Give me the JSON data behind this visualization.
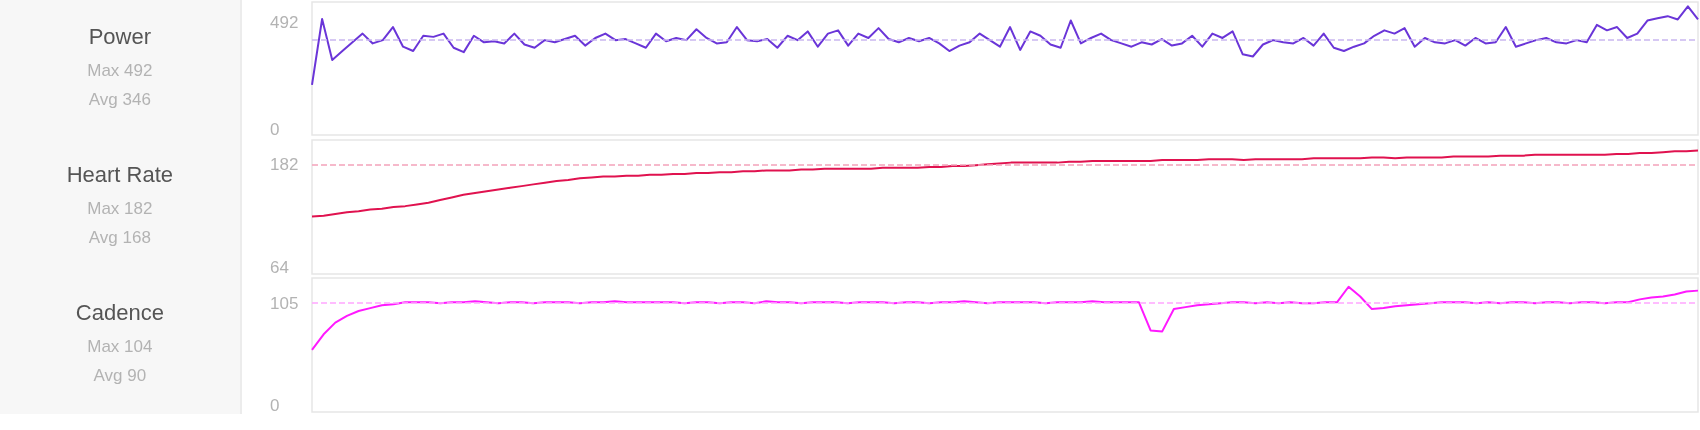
{
  "chart_data": [
    {
      "type": "line",
      "title": "Power",
      "annotations": [
        "Max 492",
        "Avg 346"
      ],
      "categories": [
        null,
        null,
        null,
        null,
        null,
        null,
        null,
        null,
        null,
        null,
        null,
        null,
        null,
        null,
        null,
        null,
        null,
        null,
        null,
        null,
        null,
        null,
        null,
        null,
        null,
        null,
        null,
        null,
        null,
        null,
        null,
        null,
        null,
        null,
        null,
        null,
        null,
        null,
        null,
        null,
        null,
        null,
        null,
        null,
        null,
        null,
        null,
        null,
        null,
        null,
        null,
        null,
        null,
        null,
        null,
        null,
        null,
        null,
        null,
        null,
        null,
        null,
        null,
        null,
        null,
        null,
        null,
        null,
        null,
        null,
        null,
        null,
        null,
        null,
        null,
        null,
        null,
        null,
        null,
        null,
        null,
        null,
        null,
        null,
        null,
        null,
        null,
        null,
        null,
        null,
        null,
        null,
        null,
        null,
        null,
        null,
        null,
        null,
        null,
        null,
        null,
        null,
        null,
        null,
        null,
        null,
        null,
        null,
        null,
        null,
        null,
        null,
        null,
        null,
        null,
        null,
        null,
        null,
        null,
        null,
        null,
        null,
        null,
        null,
        null,
        null,
        null,
        null,
        null,
        null,
        null,
        null,
        null,
        null,
        null,
        null,
        null,
        null
      ],
      "series": [
        {
          "color": "#6a35d8",
          "values": [
            205,
            507,
            319,
            360,
            400,
            440,
            395,
            410,
            470,
            380,
            360,
            430,
            425,
            440,
            375,
            355,
            430,
            400,
            405,
            395,
            440,
            390,
            375,
            410,
            400,
            415,
            430,
            385,
            420,
            440,
            410,
            415,
            395,
            375,
            440,
            405,
            420,
            410,
            460,
            420,
            395,
            400,
            470,
            410,
            405,
            415,
            375,
            430,
            410,
            450,
            380,
            440,
            455,
            385,
            440,
            420,
            465,
            415,
            400,
            420,
            405,
            420,
            395,
            360,
            385,
            400,
            440,
            410,
            380,
            470,
            365,
            450,
            430,
            390,
            375,
            500,
            395,
            420,
            440,
            410,
            395,
            380,
            400,
            390,
            415,
            385,
            395,
            430,
            380,
            440,
            420,
            450,
            345,
            335,
            390,
            410,
            400,
            395,
            420,
            385,
            440,
            375,
            360,
            380,
            395,
            430,
            455,
            440,
            465,
            380,
            420,
            400,
            395,
            410,
            385,
            420,
            395,
            400,
            470,
            380,
            395,
            410,
            420,
            400,
            395,
            410,
            400,
            480,
            455,
            470,
            420,
            440,
            500,
            510,
            520,
            505,
            565,
            505
          ]
        }
      ],
      "ylim": [
        -25,
        585
      ],
      "yticks": [
        0,
        492
      ],
      "tick_labels": "y",
      "grid": false,
      "marker": "none",
      "line_style": "solid",
      "ref_lines": [
        {
          "axis": "y",
          "value": 410,
          "color": "#c9b6f0",
          "line_style": "dashed"
        }
      ]
    },
    {
      "type": "line",
      "title": "Heart Rate",
      "annotations": [
        "Max 182",
        "Avg 168"
      ],
      "categories": [
        null,
        null,
        null,
        null,
        null,
        null,
        null,
        null,
        null,
        null,
        null,
        null,
        null,
        null,
        null,
        null,
        null,
        null,
        null,
        null,
        null,
        null,
        null,
        null,
        null,
        null,
        null,
        null,
        null,
        null,
        null,
        null,
        null,
        null,
        null,
        null,
        null,
        null,
        null,
        null,
        null,
        null,
        null,
        null,
        null,
        null,
        null,
        null,
        null,
        null,
        null,
        null,
        null,
        null,
        null,
        null,
        null,
        null,
        null,
        null,
        null,
        null,
        null,
        null,
        null,
        null,
        null,
        null,
        null,
        null,
        null,
        null,
        null,
        null,
        null,
        null,
        null,
        null,
        null,
        null,
        null,
        null,
        null,
        null,
        null,
        null,
        null,
        null,
        null,
        null,
        null,
        null,
        null,
        null,
        null,
        null,
        null,
        null,
        null,
        null,
        null,
        null,
        null,
        null,
        null,
        null,
        null,
        null,
        null,
        null,
        null,
        null,
        null,
        null,
        null,
        null,
        null,
        null,
        null,
        null
      ],
      "series": [
        {
          "color": "#e0124f",
          "values": [
            122,
            123,
            125,
            127,
            128,
            130,
            131,
            133,
            134,
            136,
            138,
            141,
            144,
            147,
            149,
            151,
            153,
            155,
            157,
            159,
            161,
            163,
            164,
            166,
            167,
            168,
            168,
            169,
            169,
            170,
            170,
            171,
            171,
            172,
            172,
            173,
            173,
            174,
            174,
            175,
            175,
            175,
            176,
            176,
            177,
            177,
            177,
            177,
            177,
            178,
            178,
            178,
            178,
            179,
            179,
            180,
            180,
            181,
            182,
            183,
            184,
            184,
            184,
            184,
            184,
            185,
            185,
            186,
            186,
            186,
            186,
            186,
            186,
            187,
            187,
            187,
            187,
            188,
            188,
            188,
            187,
            188,
            188,
            188,
            188,
            188,
            189,
            189,
            189,
            189,
            189,
            190,
            190,
            189,
            190,
            190,
            190,
            190,
            191,
            191,
            191,
            191,
            192,
            192,
            192,
            193,
            193,
            193,
            193,
            193,
            193,
            193,
            194,
            194,
            195,
            195,
            196,
            197,
            197,
            198
          ]
        }
      ],
      "ylim": [
        56,
        210
      ],
      "yticks": [
        64,
        182
      ],
      "tick_labels": "y",
      "grid": false,
      "marker": "none",
      "line_style": "solid",
      "ref_lines": [
        {
          "axis": "y",
          "value": 182,
          "color": "#f4a3bb",
          "line_style": "dashed"
        }
      ]
    },
    {
      "type": "line",
      "title": "Cadence",
      "annotations": [
        "Max 104",
        "Avg 90"
      ],
      "categories": [
        null,
        null,
        null,
        null,
        null,
        null,
        null,
        null,
        null,
        null,
        null,
        null,
        null,
        null,
        null,
        null,
        null,
        null,
        null,
        null,
        null,
        null,
        null,
        null,
        null,
        null,
        null,
        null,
        null,
        null,
        null,
        null,
        null,
        null,
        null,
        null,
        null,
        null,
        null,
        null,
        null,
        null,
        null,
        null,
        null,
        null,
        null,
        null,
        null,
        null,
        null,
        null,
        null,
        null,
        null,
        null,
        null,
        null,
        null,
        null,
        null,
        null,
        null,
        null,
        null,
        null,
        null,
        null,
        null,
        null,
        null,
        null,
        null,
        null,
        null,
        null,
        null,
        null,
        null,
        null,
        null,
        null,
        null,
        null,
        null,
        null,
        null,
        null,
        null,
        null,
        null,
        null,
        null,
        null,
        null,
        null,
        null,
        null,
        null,
        null,
        null,
        null,
        null,
        null,
        null,
        null,
        null,
        null,
        null,
        null,
        null,
        null,
        null,
        null,
        null,
        null,
        null,
        null,
        null,
        null
      ],
      "series": [
        {
          "color": "#ff19ff",
          "values": [
            57,
            73,
            85,
            92,
            97,
            100,
            103,
            104,
            106,
            106,
            106,
            105,
            106,
            106,
            107,
            106,
            105,
            106,
            106,
            105,
            106,
            106,
            106,
            105,
            106,
            106,
            107,
            106,
            106,
            106,
            106,
            106,
            105,
            106,
            106,
            105,
            106,
            106,
            105,
            107,
            106,
            106,
            105,
            106,
            106,
            106,
            105,
            106,
            106,
            106,
            105,
            106,
            106,
            105,
            106,
            106,
            107,
            106,
            105,
            106,
            106,
            106,
            106,
            105,
            106,
            106,
            106,
            107,
            106,
            106,
            106,
            106,
            77,
            76,
            99,
            101,
            103,
            104,
            105,
            106,
            106,
            105,
            106,
            105,
            106,
            105,
            105,
            106,
            106,
            122,
            112,
            99,
            100,
            102,
            103,
            104,
            105,
            106,
            106,
            106,
            105,
            106,
            105,
            106,
            106,
            105,
            106,
            106,
            105,
            106,
            106,
            105,
            106,
            106,
            109,
            111,
            112,
            114,
            117,
            118
          ]
        }
      ],
      "ylim": [
        -7,
        131
      ],
      "yticks": [
        0,
        105
      ],
      "tick_labels": "y",
      "grid": false,
      "marker": "none",
      "line_style": "solid",
      "ref_lines": [
        {
          "axis": "y",
          "value": 105,
          "color": "#ffa6ff",
          "line_style": "dashed"
        }
      ]
    }
  ]
}
